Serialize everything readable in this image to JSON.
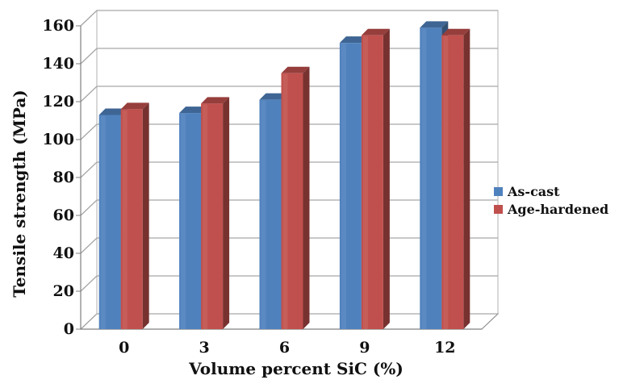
{
  "chart_data": {
    "type": "bar",
    "title": "",
    "xlabel": "Volume percent SiC (%)",
    "ylabel": "Tensile strength (MPa)",
    "categories": [
      "0",
      "3",
      "6",
      "9",
      "12"
    ],
    "ylim": [
      0,
      160
    ],
    "yticks": [
      "0",
      "20",
      "40",
      "60",
      "80",
      "100",
      "120",
      "140",
      "160"
    ],
    "grid": true,
    "legend_position": "right",
    "series": [
      {
        "name": "As-cast",
        "values": [
          113,
          114,
          121,
          151,
          159
        ],
        "color": "#4f81bd"
      },
      {
        "name": "Age-hardened",
        "values": [
          116,
          119,
          135,
          155,
          155
        ],
        "color": "#c0504d"
      }
    ]
  }
}
